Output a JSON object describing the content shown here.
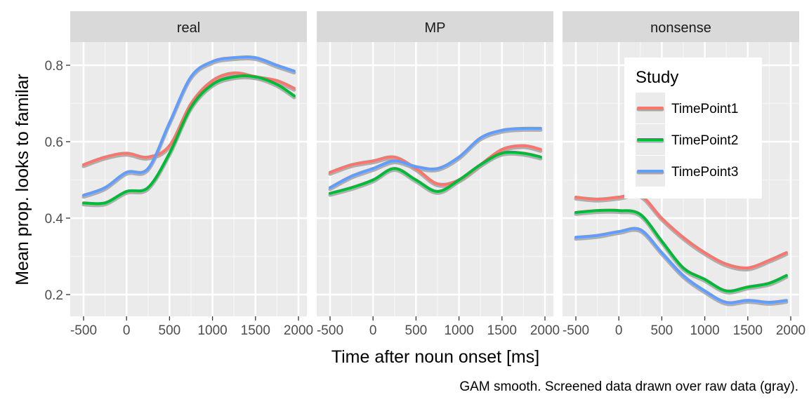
{
  "chart_data": {
    "type": "line",
    "layout": "faceted",
    "facet_by": "condition",
    "panels": [
      "real",
      "MP",
      "nonsense"
    ],
    "xlabel": "Time after noun onset [ms]",
    "ylabel": "Mean prop. looks to familar",
    "caption": "GAM smooth. Screened data drawn over raw data (gray).",
    "xlim": [
      -600,
      2050
    ],
    "ylim": [
      0.14,
      0.9
    ],
    "x_ticks": [
      -500,
      0,
      500,
      1000,
      1500,
      2000
    ],
    "x_tick_labels": [
      "-500",
      "0",
      "500",
      "1000",
      "1500",
      "2000"
    ],
    "y_ticks": [
      0.2,
      0.4,
      0.6,
      0.8
    ],
    "y_tick_labels": [
      "0.2",
      "0.4",
      "0.6",
      "0.8"
    ],
    "grid": true,
    "legend": {
      "title": "Study",
      "placement": "inside nonsense panel, top-right",
      "entries": [
        "TimePoint1",
        "TimePoint2",
        "TimePoint3"
      ]
    },
    "colors": {
      "TimePoint1": "#F8766D",
      "TimePoint2": "#00BA38",
      "TimePoint3": "#619CFF",
      "raw": "#A6A6A6",
      "panel_bg": "#EBEBEB",
      "strip_bg": "#D9D9D9"
    },
    "x": [
      -500,
      -250,
      0,
      250,
      500,
      750,
      1000,
      1250,
      1500,
      1750,
      1950
    ],
    "facets": [
      {
        "panel": "real",
        "series": [
          {
            "name": "TimePoint1",
            "values": [
              0.54,
              0.56,
              0.57,
              0.56,
              0.59,
              0.7,
              0.76,
              0.78,
              0.77,
              0.76,
              0.74
            ]
          },
          {
            "name": "TimePoint2",
            "values": [
              0.44,
              0.44,
              0.47,
              0.48,
              0.57,
              0.69,
              0.75,
              0.77,
              0.77,
              0.75,
              0.72
            ]
          },
          {
            "name": "TimePoint3",
            "values": [
              0.46,
              0.48,
              0.52,
              0.53,
              0.65,
              0.77,
              0.81,
              0.82,
              0.82,
              0.8,
              0.785
            ]
          }
        ]
      },
      {
        "panel": "MP",
        "series": [
          {
            "name": "TimePoint1",
            "values": [
              0.52,
              0.54,
              0.55,
              0.56,
              0.53,
              0.49,
              0.5,
              0.54,
              0.58,
              0.59,
              0.58
            ]
          },
          {
            "name": "TimePoint2",
            "values": [
              0.465,
              0.48,
              0.5,
              0.53,
              0.5,
              0.47,
              0.5,
              0.54,
              0.57,
              0.57,
              0.56
            ]
          },
          {
            "name": "TimePoint3",
            "values": [
              0.48,
              0.51,
              0.53,
              0.55,
              0.535,
              0.53,
              0.56,
              0.61,
              0.63,
              0.635,
              0.635
            ]
          }
        ]
      },
      {
        "panel": "nonsense",
        "series": [
          {
            "name": "TimePoint1",
            "values": [
              0.455,
              0.45,
              0.455,
              0.46,
              0.4,
              0.35,
              0.31,
              0.28,
              0.27,
              0.29,
              0.31
            ]
          },
          {
            "name": "TimePoint2",
            "values": [
              0.415,
              0.42,
              0.42,
              0.41,
              0.34,
              0.27,
              0.24,
              0.21,
              0.22,
              0.23,
              0.25
            ]
          },
          {
            "name": "TimePoint3",
            "values": [
              0.35,
              0.355,
              0.365,
              0.37,
              0.31,
              0.25,
              0.21,
              0.18,
              0.185,
              0.18,
              0.185
            ]
          }
        ]
      }
    ]
  }
}
